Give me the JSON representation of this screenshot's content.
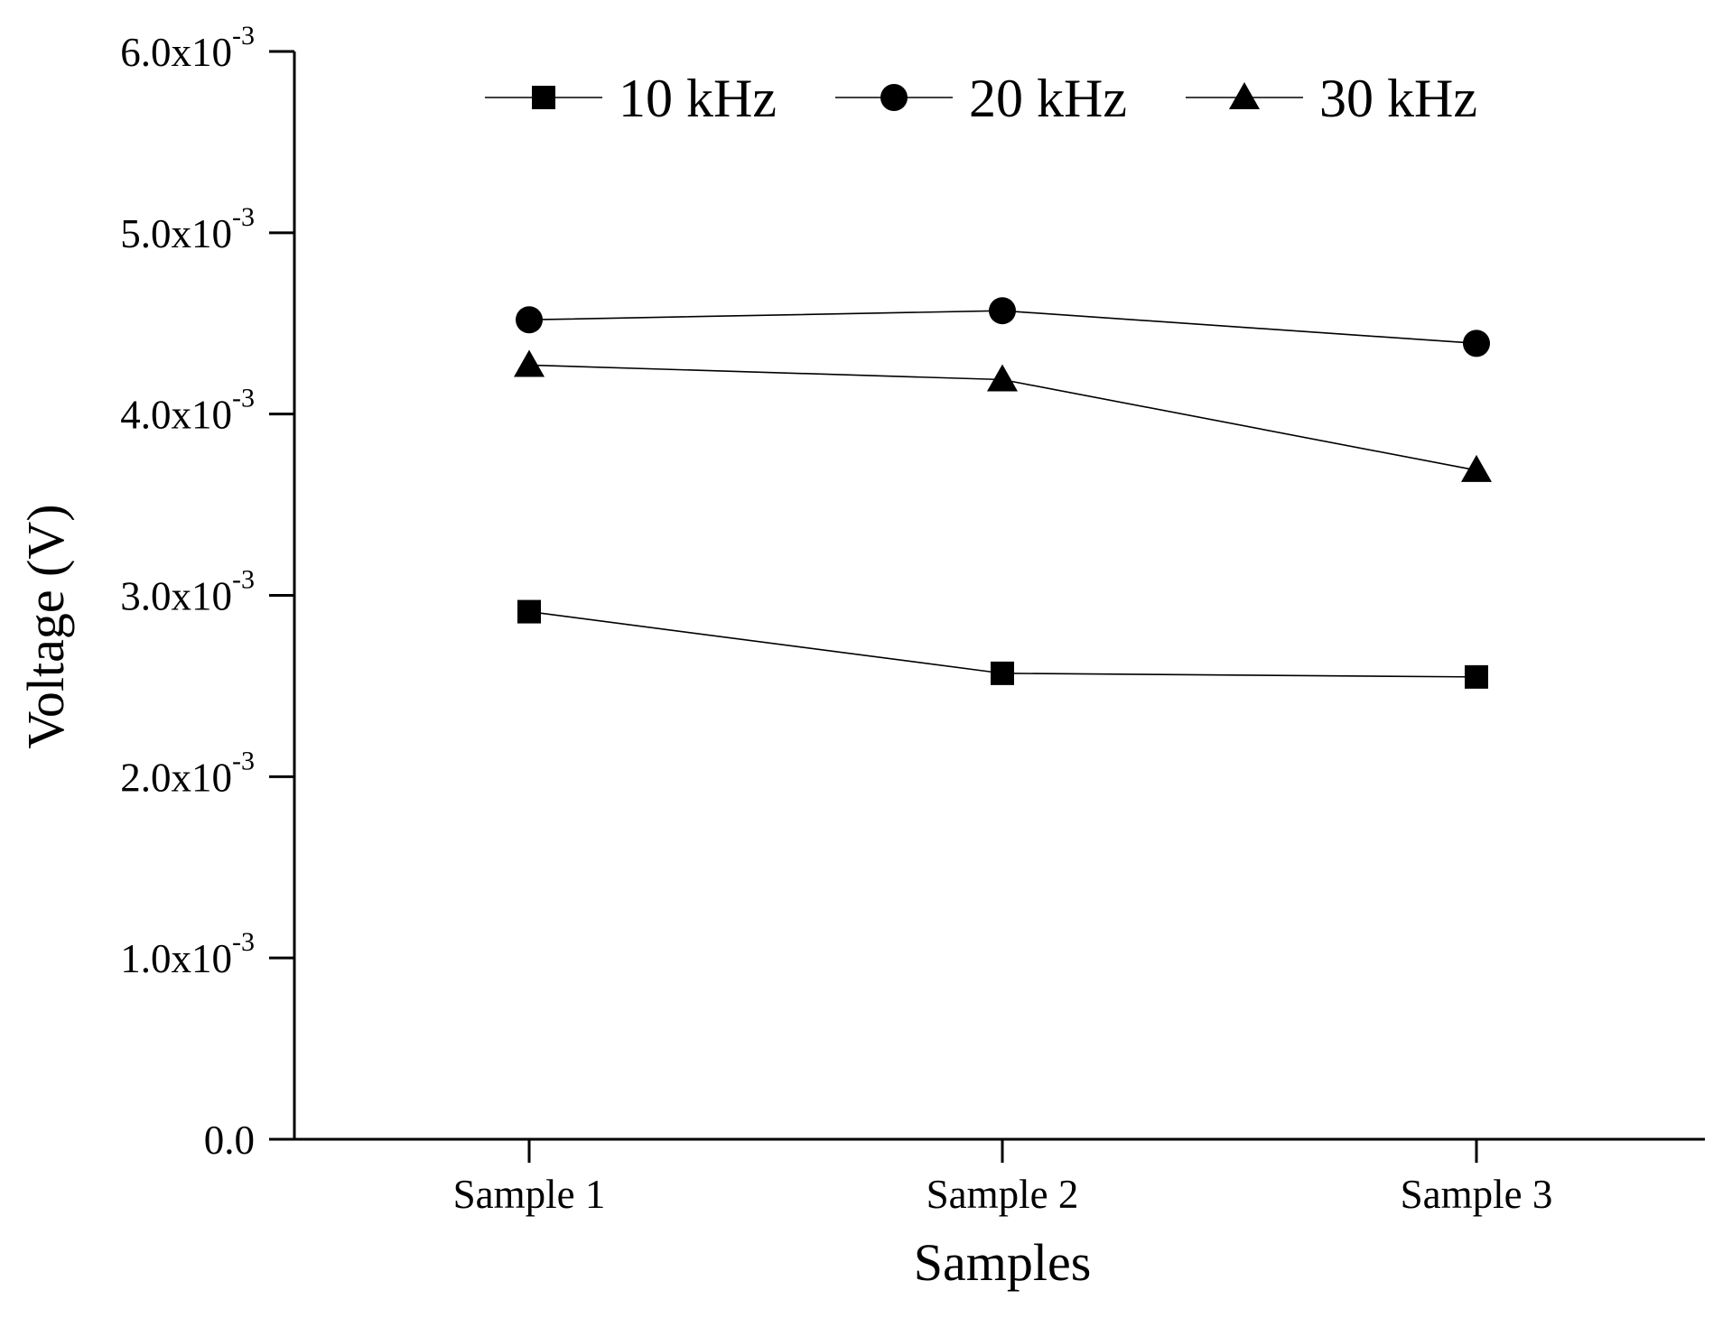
{
  "chart_data": {
    "type": "line",
    "title": "",
    "xlabel": "Samples",
    "ylabel": "Voltage (V)",
    "categories": [
      "Sample 1",
      "Sample 2",
      "Sample 3"
    ],
    "ylim": [
      0,
      0.006
    ],
    "yticks": [
      {
        "value": 0.0,
        "mantissa": "0.0",
        "exponent": ""
      },
      {
        "value": 0.001,
        "mantissa": "1.0x10",
        "exponent": "-3"
      },
      {
        "value": 0.002,
        "mantissa": "2.0x10",
        "exponent": "-3"
      },
      {
        "value": 0.003,
        "mantissa": "3.0x10",
        "exponent": "-3"
      },
      {
        "value": 0.004,
        "mantissa": "4.0x10",
        "exponent": "-3"
      },
      {
        "value": 0.005,
        "mantissa": "5.0x10",
        "exponent": "-3"
      },
      {
        "value": 0.006,
        "mantissa": "6.0x10",
        "exponent": "-3"
      }
    ],
    "series": [
      {
        "name": "10 kHz",
        "marker": "square",
        "values": [
          0.00291,
          0.00257,
          0.00255
        ]
      },
      {
        "name": "20 kHz",
        "marker": "circle",
        "values": [
          0.00452,
          0.00457,
          0.00439
        ]
      },
      {
        "name": "30 kHz",
        "marker": "triangle",
        "values": [
          0.00427,
          0.00419,
          0.00369
        ]
      }
    ],
    "legend_position": "top",
    "grid": false,
    "colors": {
      "marker": "#000000",
      "line": "#000000",
      "axis": "#000000"
    }
  }
}
